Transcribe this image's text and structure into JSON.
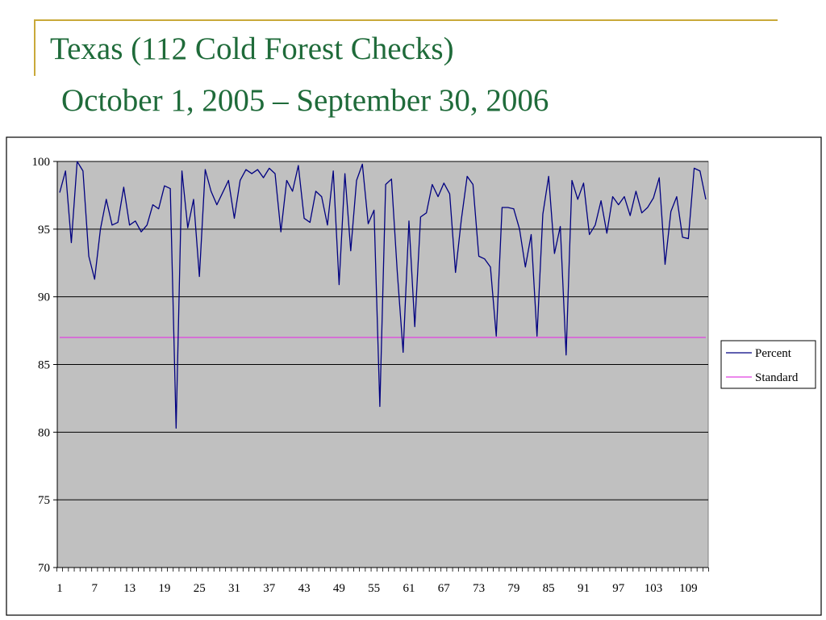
{
  "slide": {
    "title": "Texas (112 Cold Forest Checks)",
    "subtitle": "October 1, 2005 – September 30, 2006",
    "title_color": "#1f6b3a",
    "accent_color": "#c9a93a"
  },
  "chart_data": {
    "type": "line",
    "title": "",
    "xlabel": "",
    "ylabel": "",
    "ylim": [
      70,
      100
    ],
    "yticks": [
      70,
      75,
      80,
      85,
      90,
      95,
      100
    ],
    "xlim": [
      1,
      112
    ],
    "xticks": [
      1,
      7,
      13,
      19,
      25,
      31,
      37,
      43,
      49,
      55,
      61,
      67,
      73,
      79,
      85,
      91,
      97,
      103,
      109
    ],
    "grid": true,
    "legend_position": "right",
    "plot_background": "#c0c0c0",
    "series": [
      {
        "name": "Percent",
        "color": "#000080",
        "x": [
          1,
          2,
          3,
          4,
          5,
          6,
          7,
          8,
          9,
          10,
          11,
          12,
          13,
          14,
          15,
          16,
          17,
          18,
          19,
          20,
          21,
          22,
          23,
          24,
          25,
          26,
          27,
          28,
          29,
          30,
          31,
          32,
          33,
          34,
          35,
          36,
          37,
          38,
          39,
          40,
          41,
          42,
          43,
          44,
          45,
          46,
          47,
          48,
          49,
          50,
          51,
          52,
          53,
          54,
          55,
          56,
          57,
          58,
          59,
          60,
          61,
          62,
          63,
          64,
          65,
          66,
          67,
          68,
          69,
          70,
          71,
          72,
          73,
          74,
          75,
          76,
          77,
          78,
          79,
          80,
          81,
          82,
          83,
          84,
          85,
          86,
          87,
          88,
          89,
          90,
          91,
          92,
          93,
          94,
          95,
          96,
          97,
          98,
          99,
          100,
          101,
          102,
          103,
          104,
          105,
          106,
          107,
          108,
          109,
          110,
          111,
          112
        ],
        "values": [
          97.7,
          99.3,
          94.0,
          100.0,
          99.3,
          93.0,
          91.3,
          95.0,
          97.2,
          95.3,
          95.5,
          98.1,
          95.3,
          95.6,
          94.8,
          95.3,
          96.8,
          96.5,
          98.2,
          98.0,
          80.3,
          99.3,
          95.1,
          97.2,
          91.5,
          99.4,
          97.8,
          96.8,
          97.7,
          98.6,
          95.8,
          98.6,
          99.4,
          99.1,
          99.4,
          98.8,
          99.5,
          99.1,
          94.8,
          98.6,
          97.8,
          99.7,
          95.8,
          95.5,
          97.8,
          97.4,
          95.3,
          99.3,
          90.9,
          99.1,
          93.4,
          98.6,
          99.8,
          95.4,
          96.4,
          81.9,
          98.3,
          98.7,
          91.8,
          85.9,
          95.6,
          87.8,
          95.9,
          96.2,
          98.3,
          97.4,
          98.4,
          97.6,
          91.8,
          95.7,
          98.9,
          98.3,
          93.0,
          92.8,
          92.2,
          87.1,
          96.6,
          96.6,
          96.5,
          95.0,
          92.2,
          94.6,
          87.1,
          96.1,
          98.9,
          93.2,
          95.2,
          85.7,
          98.6,
          97.2,
          98.4,
          94.6,
          95.3,
          97.1,
          94.7,
          97.4,
          96.8,
          97.4,
          96.0,
          97.8,
          96.2,
          96.6,
          97.3,
          98.8,
          92.4,
          96.3,
          97.4,
          94.4,
          94.3,
          99.5,
          99.3,
          97.2
        ]
      },
      {
        "name": "Standard",
        "color": "#e040e0",
        "x": [
          1,
          112
        ],
        "values": [
          87,
          87
        ]
      }
    ]
  }
}
